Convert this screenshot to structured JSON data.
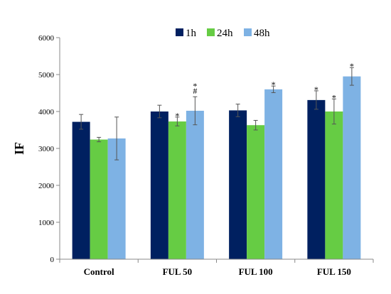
{
  "chart_data": {
    "type": "bar",
    "title": "",
    "xlabel": "",
    "ylabel": "IF",
    "ylim": [
      0,
      6000
    ],
    "yticks": [
      0,
      1000,
      2000,
      3000,
      4000,
      5000,
      6000
    ],
    "grid": false,
    "legend_position": "top-center",
    "categories": [
      "Control",
      "FUL 50",
      "FUL 100",
      "FUL 150"
    ],
    "series": [
      {
        "name": "1h",
        "color": "#002060",
        "values": [
          3720,
          4000,
          4030,
          4310
        ],
        "errors": [
          200,
          170,
          170,
          250
        ],
        "annotations": [
          "",
          "",
          "",
          "*"
        ]
      },
      {
        "name": "24h",
        "color": "#66CC44",
        "values": [
          3240,
          3730,
          3630,
          4000
        ],
        "errors": [
          60,
          120,
          130,
          340
        ],
        "annotations": [
          "",
          "*",
          "",
          "*"
        ]
      },
      {
        "name": "48h",
        "color": "#7EB2E4",
        "values": [
          3270,
          4020,
          4600,
          4950
        ],
        "errors": [
          580,
          380,
          90,
          240
        ],
        "annotations": [
          "",
          "*\n#",
          "*",
          "*"
        ]
      }
    ]
  }
}
